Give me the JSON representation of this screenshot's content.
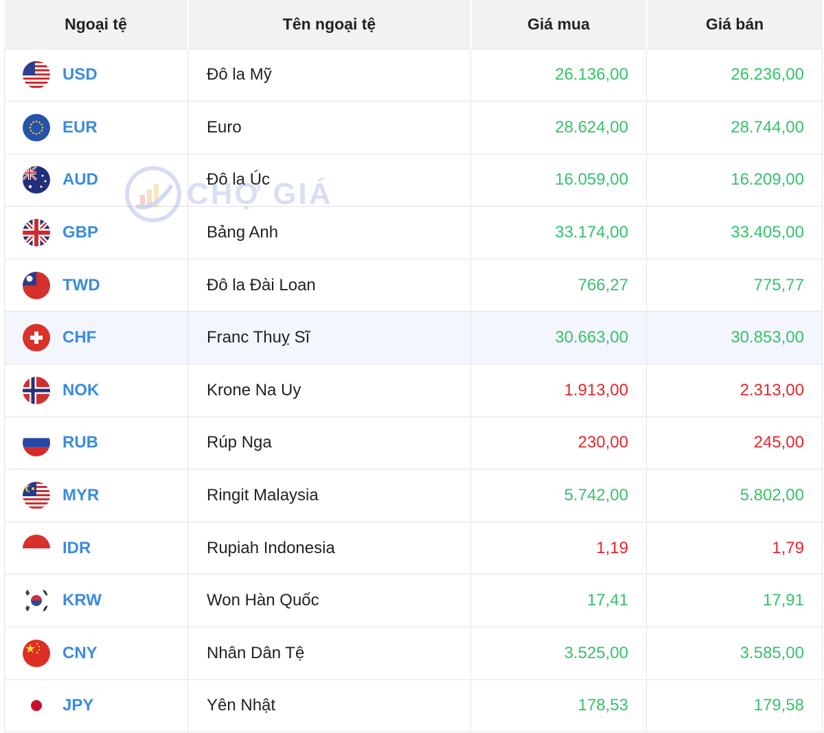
{
  "table": {
    "headers": [
      "Ngoại tệ",
      "Tên ngoại tệ",
      "Giá mua",
      "Giá bán"
    ],
    "rows": [
      {
        "code": "USD",
        "name": "Đô la Mỹ",
        "buy": "26.136,00",
        "sell": "26.236,00",
        "trend": "up",
        "flag_icon": "us-flag-icon"
      },
      {
        "code": "EUR",
        "name": "Euro",
        "buy": "28.624,00",
        "sell": "28.744,00",
        "trend": "up",
        "flag_icon": "eu-flag-icon"
      },
      {
        "code": "AUD",
        "name": "Đô la Úc",
        "buy": "16.059,00",
        "sell": "16.209,00",
        "trend": "up",
        "flag_icon": "au-flag-icon"
      },
      {
        "code": "GBP",
        "name": "Bảng Anh",
        "buy": "33.174,00",
        "sell": "33.405,00",
        "trend": "up",
        "flag_icon": "uk-flag-icon"
      },
      {
        "code": "TWD",
        "name": "Đô la Đài Loan",
        "buy": "766,27",
        "sell": "775,77",
        "trend": "up",
        "flag_icon": "tw-flag-icon"
      },
      {
        "code": "CHF",
        "name": "Franc Thuỵ Sĩ",
        "buy": "30.663,00",
        "sell": "30.853,00",
        "trend": "up",
        "flag_icon": "ch-flag-icon",
        "highlighted": true
      },
      {
        "code": "NOK",
        "name": "Krone Na Uy",
        "buy": "1.913,00",
        "sell": "2.313,00",
        "trend": "down",
        "flag_icon": "no-flag-icon"
      },
      {
        "code": "RUB",
        "name": "Rúp Nga",
        "buy": "230,00",
        "sell": "245,00",
        "trend": "down",
        "flag_icon": "ru-flag-icon"
      },
      {
        "code": "MYR",
        "name": "Ringit Malaysia",
        "buy": "5.742,00",
        "sell": "5.802,00",
        "trend": "up",
        "flag_icon": "my-flag-icon"
      },
      {
        "code": "IDR",
        "name": "Rupiah Indonesia",
        "buy": "1,19",
        "sell": "1,79",
        "trend": "down",
        "flag_icon": "id-flag-icon"
      },
      {
        "code": "KRW",
        "name": "Won Hàn Quốc",
        "buy": "17,41",
        "sell": "17,91",
        "trend": "up",
        "flag_icon": "kr-flag-icon"
      },
      {
        "code": "CNY",
        "name": "Nhân Dân Tệ",
        "buy": "3.525,00",
        "sell": "3.585,00",
        "trend": "up",
        "flag_icon": "cn-flag-icon"
      },
      {
        "code": "JPY",
        "name": "Yên Nhật",
        "buy": "178,53",
        "sell": "179,58",
        "trend": "up",
        "flag_icon": "jp-flag-icon"
      }
    ]
  },
  "watermark": {
    "text": "CHỢ GIÁ"
  },
  "colors": {
    "up": "#35c26a",
    "down": "#e6262b",
    "code": "#3b8be0",
    "header_bg": "#f2f2f2",
    "highlight_row": "#f3f6fc"
  }
}
